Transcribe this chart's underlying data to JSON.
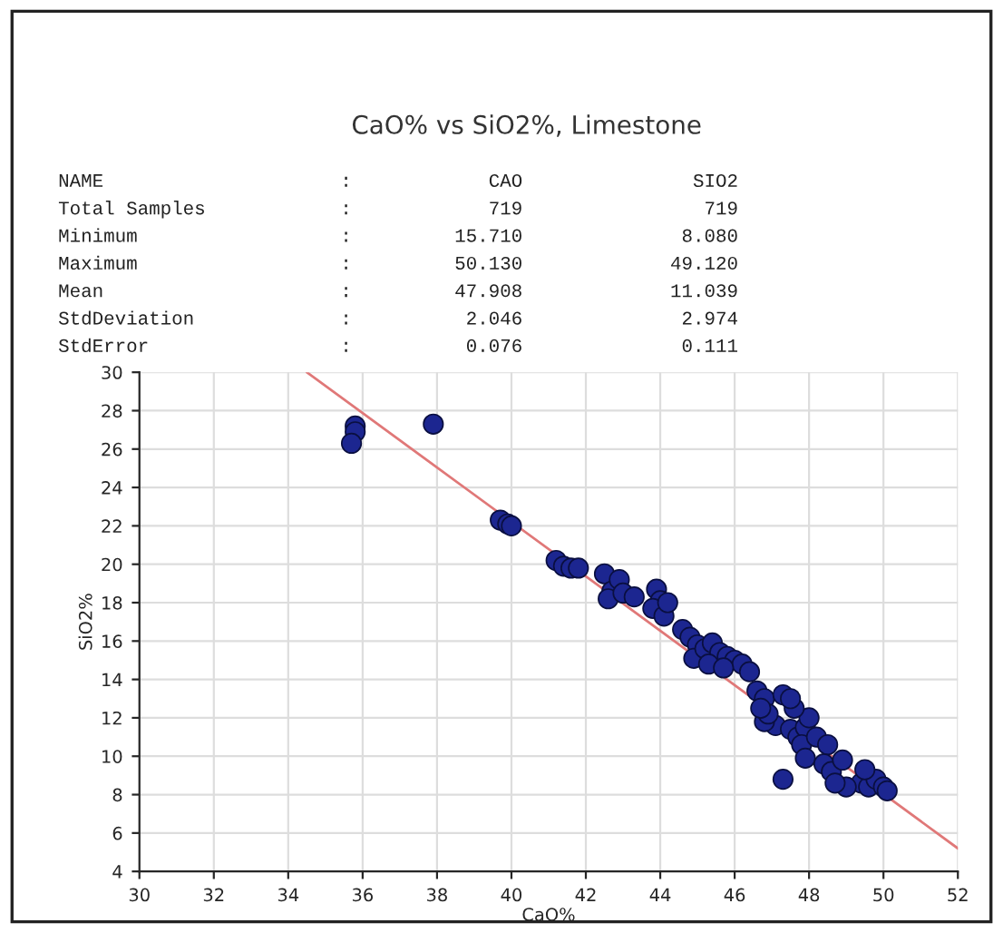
{
  "chart_data": {
    "type": "scatter",
    "title": "CaO% vs SiO2%, Limestone",
    "xlabel": "CaO%",
    "ylabel": "SiO2%",
    "annotations": [
      "NAME",
      ":",
      "CAO",
      "SIO2",
      "Total Samples",
      ":",
      "719",
      "719",
      "Minimum",
      ":",
      "15.710",
      "8.080",
      "Maximum",
      ":",
      "50.130",
      "49.120",
      "Mean",
      ":",
      "47.908",
      "11.039",
      "StdDeviation",
      ":",
      "2.046",
      "2.974",
      "StdError",
      ":",
      "0.076",
      "0.111"
    ],
    "xlim": [
      30,
      52
    ],
    "xticks": [
      30,
      32,
      34,
      36,
      38,
      40,
      42,
      44,
      46,
      48,
      50,
      52
    ],
    "ylim": [
      4,
      30
    ],
    "yticks": [
      4,
      6,
      8,
      10,
      12,
      14,
      16,
      18,
      20,
      22,
      24,
      26,
      28,
      30
    ],
    "grid": true,
    "series": [
      {
        "color": "#1c2690",
        "marker": "circle",
        "x": [
          35.8,
          35.8,
          35.7,
          37.9,
          39.7,
          39.9,
          40.0,
          41.2,
          41.4,
          41.6,
          41.8,
          42.5,
          42.7,
          42.6,
          42.9,
          43.0,
          43.3,
          43.9,
          44.0,
          43.8,
          44.1,
          44.2,
          44.6,
          44.8,
          45.0,
          44.9,
          45.2,
          45.4,
          45.6,
          45.3,
          45.8,
          46.0,
          46.2,
          46.4,
          45.7,
          46.6,
          46.8,
          47.1,
          46.8,
          47.5,
          47.7,
          47.9,
          48.0,
          47.6,
          47.3,
          46.9,
          47.8,
          48.2,
          48.5,
          47.9,
          48.4,
          48.6,
          49.4,
          49.6,
          49.8,
          50.0,
          50.1,
          49.0,
          48.7,
          47.3,
          48.9,
          49.5,
          46.7,
          47.5
        ],
        "values": [
          27.2,
          26.9,
          26.3,
          27.3,
          22.3,
          22.1,
          22.0,
          20.2,
          19.9,
          19.8,
          19.8,
          19.5,
          18.6,
          18.2,
          19.2,
          18.5,
          18.3,
          18.7,
          18.1,
          17.7,
          17.3,
          18.0,
          16.6,
          16.2,
          15.8,
          15.1,
          15.6,
          15.9,
          15.4,
          14.8,
          15.2,
          15.0,
          14.8,
          14.4,
          14.6,
          13.4,
          13.0,
          11.6,
          11.8,
          11.4,
          11.0,
          11.5,
          12.0,
          12.5,
          13.2,
          12.2,
          10.6,
          11.0,
          10.6,
          9.9,
          9.6,
          9.2,
          8.6,
          8.4,
          8.8,
          8.4,
          8.2,
          8.4,
          8.6,
          8.8,
          9.8,
          9.3,
          12.5,
          13.0
        ]
      },
      {
        "type": "line",
        "color": "#e07878",
        "x": [
          34.5,
          52
        ],
        "values": [
          30,
          5.2
        ]
      }
    ]
  }
}
